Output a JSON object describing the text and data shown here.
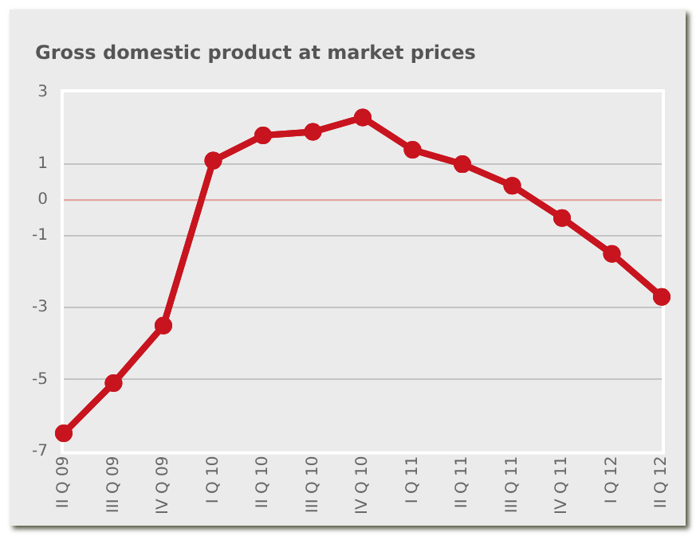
{
  "chart_data": {
    "type": "line",
    "title": "Gross domestic product at market prices",
    "categories": [
      "II Q 09",
      "III Q 09",
      "IV Q 09",
      "I Q 10",
      "II Q 10",
      "III Q 10",
      "IV Q 10",
      "I Q 11",
      "II Q 11",
      "III Q 11",
      "IV Q 11",
      "I Q 12",
      "II Q 12"
    ],
    "series": [
      {
        "color": "#c8141e",
        "values": [
          -6.5,
          -5.1,
          -3.5,
          1.1,
          1.8,
          1.9,
          2.3,
          1.4,
          1.0,
          0.4,
          -0.5,
          -1.5,
          -2.7
        ]
      }
    ],
    "ylim": [
      -7,
      3
    ],
    "yticks": [
      3,
      1,
      0,
      -1,
      -3,
      -5,
      -7
    ],
    "grid": "y",
    "legend": false,
    "marker": "circle",
    "line_style": "solid",
    "ref_lines": [
      {
        "axis": "y",
        "value": 0,
        "color": "#e8a0a0"
      }
    ]
  }
}
